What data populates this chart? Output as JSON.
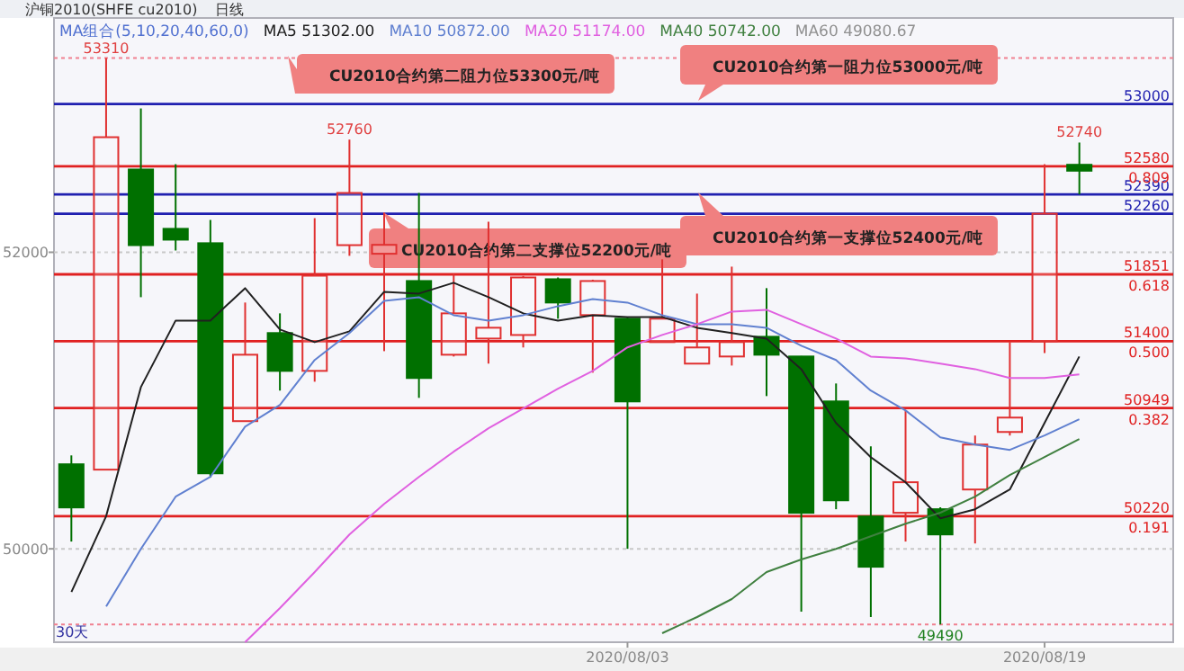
{
  "chart_data": {
    "type": "candlestick",
    "title": "沪铜2010(SHFE cu2010)",
    "subtitle": "日线",
    "categories": [
      null,
      null,
      null,
      null,
      null,
      null,
      null,
      null,
      null,
      null,
      null,
      null,
      null,
      null,
      null,
      null,
      "2020/08/03",
      null,
      null,
      null,
      null,
      null,
      null,
      null,
      null,
      null,
      null,
      null,
      "2020/08/19",
      null
    ],
    "ohlc": [
      [
        50570,
        50630,
        50049,
        50279
      ],
      [
        50534,
        53310,
        50534,
        52776
      ],
      [
        52558,
        52970,
        51697,
        52048
      ],
      [
        52158,
        52594,
        52012,
        52085
      ],
      [
        52061,
        52218,
        50480,
        50509
      ],
      [
        50861,
        51661,
        50861,
        51309
      ],
      [
        51455,
        51588,
        51067,
        51200
      ],
      [
        51200,
        52230,
        51127,
        51842
      ],
      [
        52048,
        52760,
        51976,
        52400
      ],
      [
        51990,
        52267,
        51333,
        52050
      ],
      [
        51806,
        52400,
        51018,
        51152
      ],
      [
        51309,
        51855,
        51297,
        51588
      ],
      [
        51418,
        52206,
        51249,
        51491
      ],
      [
        51442,
        51840,
        51358,
        51830
      ],
      [
        51818,
        51830,
        51552,
        51661
      ],
      [
        51576,
        51815,
        51188,
        51806
      ],
      [
        51552,
        51560,
        50000,
        50994
      ],
      [
        51394,
        51952,
        51394,
        51552
      ],
      [
        51249,
        51721,
        51249,
        51358
      ],
      [
        51297,
        51903,
        51236,
        51394
      ],
      [
        51430,
        51758,
        51030,
        51309
      ],
      [
        51297,
        51300,
        49576,
        50243
      ],
      [
        50994,
        51115,
        50267,
        50327
      ],
      [
        50218,
        50691,
        49540,
        49879
      ],
      [
        50243,
        50933,
        50049,
        50449
      ],
      [
        50267,
        50280,
        49490,
        50097
      ],
      [
        50400,
        50764,
        50036,
        50703
      ],
      [
        50788,
        51394,
        50764,
        50885
      ],
      [
        51400,
        52594,
        51320,
        52260
      ],
      [
        52590,
        52740,
        52390,
        52550
      ]
    ],
    "colors": [
      "#007000",
      "#e03030",
      "#007000",
      "#007000",
      "#007000",
      "#e03030",
      "#007000",
      "#e03030",
      "#e03030",
      "#e03030",
      "#007000",
      "#e03030",
      "#e03030",
      "#e03030",
      "#007000",
      "#e03030",
      "#007000",
      "#e03030",
      "#e03030",
      "#e03030",
      "#007000",
      "#007000",
      "#007000",
      "#007000",
      "#e03030",
      "#007000",
      "#e03030",
      "#e03030",
      "#e03030",
      "#007000"
    ],
    "series": [
      {
        "name": "MA5 51302.00",
        "type": "line",
        "color": "#202020",
        "values": [
          49709,
          50221,
          51091,
          51539,
          51539,
          51758,
          51479,
          51394,
          51467,
          51733,
          51721,
          51794,
          51697,
          51588,
          51539,
          51576,
          51564,
          51564,
          51491,
          51455,
          51418,
          51212,
          50849,
          50618,
          50449,
          50206,
          50267,
          50400,
          50849,
          51297
        ]
      },
      {
        "name": "MA10 50872.00",
        "type": "line",
        "color": "#6080d0",
        "values": [
          null,
          49612,
          50000,
          50352,
          50485,
          50824,
          50970,
          51273,
          51455,
          51673,
          51697,
          51576,
          51539,
          51576,
          51636,
          51685,
          51661,
          51576,
          51515,
          51515,
          51491,
          51370,
          51273,
          51067,
          50933,
          50752,
          50703,
          50667,
          50764,
          50873
        ]
      },
      {
        "name": "MA20 51174.00",
        "type": "line",
        "color": "#e060e0",
        "values": [
          null,
          null,
          null,
          null,
          null,
          49370,
          49600,
          49843,
          50097,
          50303,
          50485,
          50655,
          50812,
          50946,
          51079,
          51200,
          51358,
          51442,
          51515,
          51600,
          51612,
          51515,
          51418,
          51297,
          51285,
          51249,
          51212,
          51152,
          51152,
          51176
        ]
      },
      {
        "name": "MA40 50742.00",
        "type": "line",
        "color": "#408040",
        "values": [
          null,
          null,
          null,
          null,
          null,
          null,
          null,
          null,
          null,
          null,
          null,
          null,
          null,
          null,
          null,
          null,
          null,
          49431,
          49540,
          49661,
          49843,
          49928,
          50000,
          50085,
          50170,
          50243,
          50352,
          50497,
          50618,
          50740
        ]
      },
      {
        "name": "MA60 49080.67",
        "type": "line",
        "color": "#909090",
        "values": [
          null,
          null,
          null,
          null,
          null,
          null,
          null,
          null,
          null,
          null,
          null,
          null,
          null,
          null,
          null,
          null,
          null,
          null,
          null,
          null,
          null,
          null,
          null,
          null,
          null,
          null,
          null,
          null,
          null,
          null
        ]
      }
    ],
    "legend": "top",
    "legend_title": "MA组合(5,10,20,40,60,0)",
    "ylim": [
      49370,
      53580
    ],
    "yticks": [
      50000,
      52000
    ],
    "grid": "y",
    "ref_lines": [
      {
        "axis": "y",
        "value": 53310,
        "label": null,
        "color": "#f08090",
        "line_style": "dotted"
      },
      {
        "axis": "y",
        "value": 49490,
        "label": null,
        "color": "#f08090",
        "line_style": "dotted"
      },
      {
        "axis": "y",
        "value": 53000,
        "label": "53000",
        "color": "#2020b0",
        "line_style": "solid"
      },
      {
        "axis": "y",
        "value": 52580,
        "label": "52580",
        "color": "#e02020",
        "line_style": "solid"
      },
      {
        "axis": "y",
        "value": 52390,
        "label": "52390",
        "color": "#2020b0",
        "line_style": "solid"
      },
      {
        "axis": "y",
        "value": 52260,
        "label": "52260",
        "color": "#2020b0",
        "line_style": "solid"
      },
      {
        "axis": "y",
        "value": 51851,
        "label": "51851",
        "color": "#e02020",
        "line_style": "solid"
      },
      {
        "axis": "y",
        "value": 51400,
        "label": "51400",
        "color": "#e02020",
        "line_style": "solid"
      },
      {
        "axis": "y",
        "value": 50949,
        "label": "50949",
        "color": "#e02020",
        "line_style": "solid"
      },
      {
        "axis": "y",
        "value": 50220,
        "label": "50220",
        "color": "#e02020",
        "line_style": "solid"
      }
    ],
    "annotations": [
      {
        "text": "53310",
        "y": 53310
      },
      {
        "text": "52760",
        "y": 52760
      },
      {
        "text": "52740",
        "y": 52740
      },
      {
        "text": "49490",
        "y": 49490
      },
      "CU2010合约第二阻力位53300元/吨",
      "CU2010合约第一阻力位53000元/吨",
      "CU2010合约第二支撑位52200元/吨",
      "CU2010合约第一支撑位52400元/吨",
      {
        "text": "0.809",
        "y": 52580
      },
      {
        "text": "0.618",
        "y": 51851
      },
      {
        "text": "0.500",
        "y": 51400
      },
      {
        "text": "0.382",
        "y": 50949
      },
      {
        "text": "0.191",
        "y": 50220
      },
      "30天"
    ]
  }
}
